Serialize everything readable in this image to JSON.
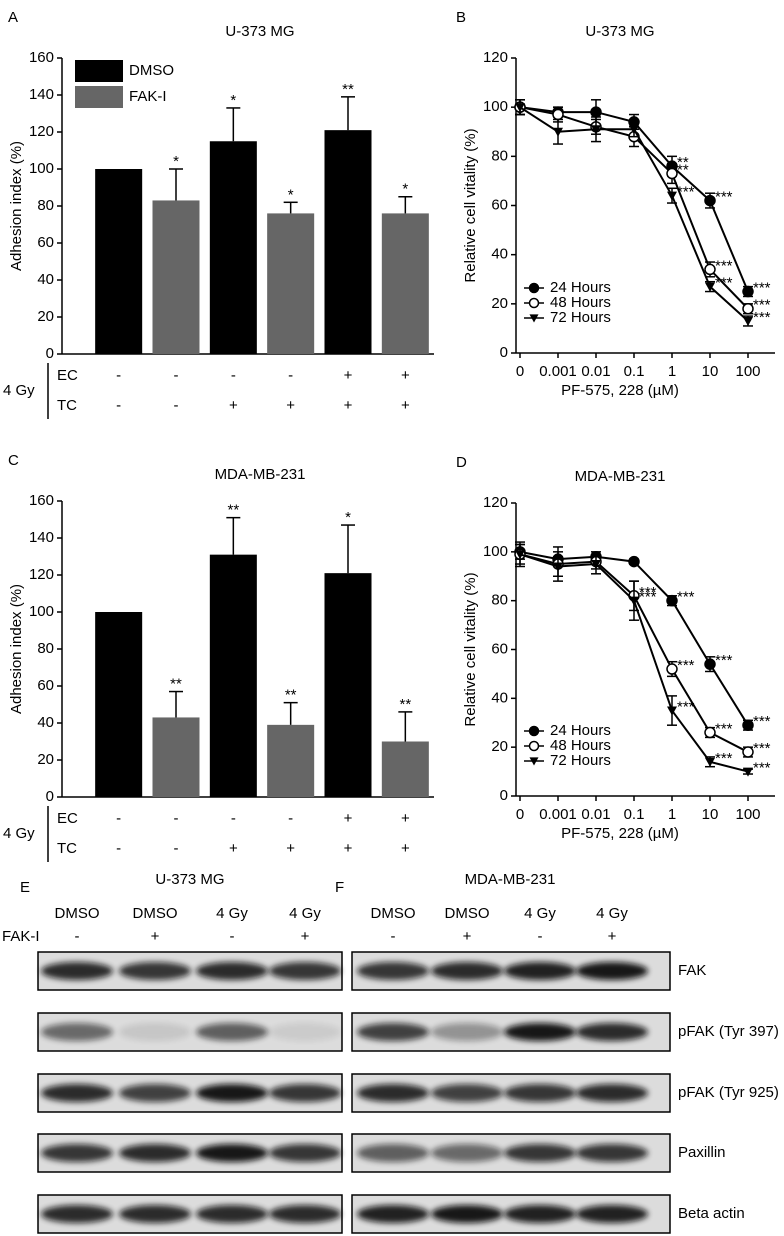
{
  "chart_data": [
    {
      "type": "bar",
      "panel": "A",
      "title": "U-373 MG",
      "ylabel": "Adhesion index (%)",
      "ylim": [
        0,
        160
      ],
      "yticks": [
        0,
        20,
        40,
        60,
        80,
        100,
        120,
        140,
        160
      ],
      "categories": [
        null,
        null,
        null,
        null,
        null,
        null
      ],
      "legend": "upper left",
      "series": [
        {
          "name": "DMSO",
          "color": "#000000",
          "values": [
            100,
            null,
            115,
            null,
            121,
            null
          ],
          "errors": [
            null,
            null,
            18,
            null,
            18,
            null
          ],
          "significance": [
            null,
            null,
            "*",
            null,
            "**",
            null
          ]
        },
        {
          "name": "FAK-I",
          "color": "#666666",
          "values": [
            null,
            83,
            null,
            76,
            null,
            76
          ],
          "errors": [
            null,
            17,
            null,
            6,
            null,
            9
          ],
          "significance": [
            null,
            "*",
            null,
            "*",
            null,
            "*"
          ]
        }
      ],
      "conditions": {
        "label": "4 Gy",
        "rows": [
          {
            "name": "EC",
            "marks": [
              "-",
              "-",
              "-",
              "-",
              "+",
              "+"
            ]
          },
          {
            "name": "TC",
            "marks": [
              "-",
              "-",
              "+",
              "+",
              "+",
              "+"
            ]
          }
        ]
      }
    },
    {
      "type": "line",
      "panel": "B",
      "title": "U-373 MG",
      "xlabel": "PF-575, 228 (µM)",
      "ylabel": "Relative cell vitality (%)",
      "categories": [
        "0",
        "0.001",
        "0.01",
        "0.1",
        "1",
        "10",
        "100"
      ],
      "ylim": [
        0,
        120
      ],
      "yticks": [
        0,
        20,
        40,
        60,
        80,
        100,
        120
      ],
      "legend": "lower left",
      "series": [
        {
          "name": "24 Hours",
          "color": "#000000",
          "marker": "filled-circle",
          "values": [
            100,
            98,
            98,
            94,
            76,
            62,
            25
          ],
          "errors": [
            3,
            2,
            5,
            3,
            4,
            3,
            2
          ],
          "significance": [
            null,
            null,
            null,
            null,
            "**",
            "***",
            "***"
          ]
        },
        {
          "name": "48 Hours",
          "color": "#000000",
          "marker": "open-circle",
          "values": [
            100,
            97,
            92,
            88,
            73,
            34,
            18
          ],
          "errors": [
            3,
            3,
            3,
            4,
            4,
            3,
            2
          ],
          "significance": [
            null,
            null,
            null,
            null,
            "**",
            "***",
            "***"
          ]
        },
        {
          "name": "72 Hours",
          "color": "#000000",
          "marker": "triangle-down",
          "values": [
            100,
            90,
            91,
            91,
            64,
            27,
            13
          ],
          "errors": [
            3,
            5,
            5,
            3,
            3,
            2,
            2
          ],
          "significance": [
            null,
            null,
            null,
            null,
            "***",
            "***",
            "***"
          ]
        }
      ]
    },
    {
      "type": "bar",
      "panel": "C",
      "title": "MDA-MB-231",
      "ylabel": "Adhesion index (%)",
      "ylim": [
        0,
        160
      ],
      "yticks": [
        0,
        20,
        40,
        60,
        80,
        100,
        120,
        140,
        160
      ],
      "categories": [
        null,
        null,
        null,
        null,
        null,
        null
      ],
      "series": [
        {
          "color": "#000000",
          "values": [
            100,
            null,
            131,
            null,
            121,
            null
          ],
          "errors": [
            null,
            null,
            20,
            null,
            26,
            null
          ],
          "significance": [
            null,
            null,
            "**",
            null,
            "*",
            null
          ]
        },
        {
          "color": "#666666",
          "values": [
            null,
            43,
            null,
            39,
            null,
            30
          ],
          "errors": [
            null,
            14,
            null,
            12,
            null,
            16
          ],
          "significance": [
            null,
            "**",
            null,
            "**",
            null,
            "**"
          ]
        }
      ],
      "conditions": {
        "label": "4 Gy",
        "rows": [
          {
            "name": "EC",
            "marks": [
              "-",
              "-",
              "-",
              "-",
              "+",
              "+"
            ]
          },
          {
            "name": "TC",
            "marks": [
              "-",
              "-",
              "+",
              "+",
              "+",
              "+"
            ]
          }
        ]
      }
    },
    {
      "type": "line",
      "panel": "D",
      "title": "MDA-MB-231",
      "xlabel": "PF-575, 228 (µM)",
      "ylabel": "Relative cell vitality (%)",
      "categories": [
        "0",
        "0.001",
        "0.01",
        "0.1",
        "1",
        "10",
        "100"
      ],
      "ylim": [
        0,
        120
      ],
      "yticks": [
        0,
        20,
        40,
        60,
        80,
        100,
        120
      ],
      "legend": "lower left",
      "series": [
        {
          "name": "24 Hours",
          "color": "#000000",
          "marker": "filled-circle",
          "values": [
            100,
            97,
            98,
            96,
            80,
            54,
            29
          ],
          "errors": [
            3,
            3,
            2,
            1,
            2,
            3,
            2
          ],
          "significance": [
            null,
            null,
            null,
            null,
            "***",
            "***",
            "***"
          ]
        },
        {
          "name": "48 Hours",
          "color": "#000000",
          "marker": "open-circle",
          "values": [
            99,
            95,
            96,
            82,
            52,
            26,
            18
          ],
          "errors": [
            4,
            7,
            3,
            6,
            3,
            2,
            2
          ],
          "significance": [
            null,
            null,
            null,
            "***",
            "***",
            "***",
            "***"
          ]
        },
        {
          "name": "72 Hours",
          "color": "#000000",
          "marker": "triangle-down",
          "values": [
            99,
            94,
            95,
            80,
            35,
            14,
            10
          ],
          "errors": [
            5,
            4,
            4,
            8,
            6,
            2,
            1
          ],
          "significance": [
            null,
            null,
            null,
            "***",
            "***",
            "***",
            "***"
          ]
        }
      ]
    }
  ],
  "blots": {
    "proteins": [
      "FAK",
      "pFAK (Tyr 397)",
      "pFAK (Tyr 925)",
      "Paxillin",
      "Beta actin"
    ],
    "panels": [
      {
        "panel": "E",
        "title": "U-373 MG",
        "lanes": [
          "DMSO",
          "DMSO",
          "4 Gy",
          "4 Gy"
        ],
        "treatment": "FAK-I",
        "treatments": [
          "-",
          "+",
          "-",
          "+"
        ]
      },
      {
        "panel": "F",
        "title": "MDA-MB-231",
        "lanes": [
          "DMSO",
          "DMSO",
          "4 Gy",
          "4 Gy"
        ],
        "treatments": [
          "-",
          "+",
          "-",
          "+"
        ]
      }
    ]
  }
}
